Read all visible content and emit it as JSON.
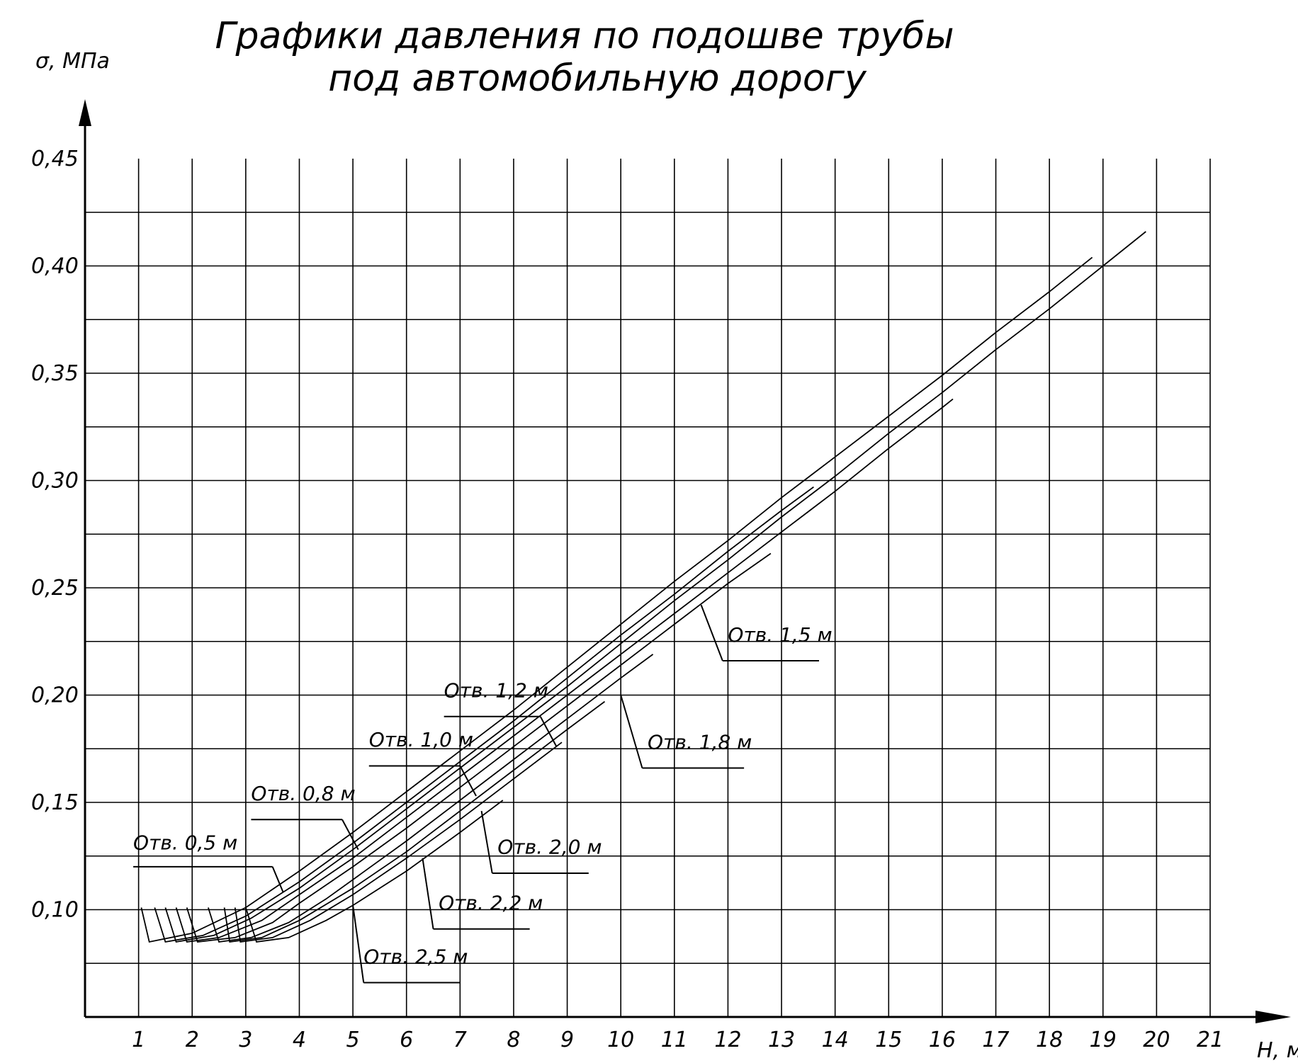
{
  "chart_data": {
    "type": "line",
    "title": [
      "Графики давления по подошве трубы",
      "под автомобильную дорогу"
    ],
    "xlabel": "H, м",
    "ylabel": "σ, МПа",
    "xlim": [
      0,
      21
    ],
    "ylim": [
      0.05,
      0.45
    ],
    "grid": true,
    "x_ticks": [
      "1",
      "2",
      "3",
      "4",
      "5",
      "6",
      "7",
      "8",
      "9",
      "10",
      "11",
      "12",
      "13",
      "14",
      "15",
      "16",
      "17",
      "18",
      "19",
      "20",
      "21"
    ],
    "y_ticks": [
      {
        "value": 0.1,
        "label": "0,10"
      },
      {
        "value": 0.15,
        "label": "0,15"
      },
      {
        "value": 0.2,
        "label": "0,20"
      },
      {
        "value": 0.25,
        "label": "0,25"
      },
      {
        "value": 0.3,
        "label": "0,30"
      },
      {
        "value": 0.35,
        "label": "0,35"
      },
      {
        "value": 0.4,
        "label": "0,40"
      },
      {
        "value": 0.45,
        "label": "0,45"
      }
    ],
    "series": [
      {
        "name": "Отв. 0,5 м",
        "points": [
          [
            1.05,
            0.101
          ],
          [
            1.2,
            0.085
          ],
          [
            2.0,
            0.089
          ],
          [
            3.0,
            0.101
          ],
          [
            4.0,
            0.118
          ],
          [
            5.0,
            0.136
          ],
          [
            6.0,
            0.155
          ],
          [
            7.0,
            0.174
          ],
          [
            8.0,
            0.193
          ],
          [
            9.0,
            0.213
          ],
          [
            10.0,
            0.233
          ],
          [
            11.0,
            0.253
          ],
          [
            12.0,
            0.272
          ],
          [
            13.0,
            0.292
          ],
          [
            14.0,
            0.311
          ],
          [
            15.0,
            0.33
          ],
          [
            16.0,
            0.349
          ],
          [
            17.0,
            0.369
          ],
          [
            18.0,
            0.388
          ],
          [
            18.8,
            0.404
          ]
        ]
      },
      {
        "name": "Отв. 0,8 м",
        "points": [
          [
            1.3,
            0.101
          ],
          [
            1.5,
            0.085
          ],
          [
            2.2,
            0.088
          ],
          [
            3.0,
            0.097
          ],
          [
            4.0,
            0.113
          ],
          [
            5.0,
            0.131
          ],
          [
            6.0,
            0.15
          ],
          [
            7.0,
            0.169
          ],
          [
            8.0,
            0.188
          ],
          [
            9.0,
            0.208
          ],
          [
            10.0,
            0.228
          ],
          [
            11.0,
            0.247
          ],
          [
            12.0,
            0.267
          ],
          [
            13.0,
            0.286
          ],
          [
            13.6,
            0.297
          ]
        ]
      },
      {
        "name": "Отв. 1,0 м",
        "points": [
          [
            1.5,
            0.101
          ],
          [
            1.7,
            0.085
          ],
          [
            2.4,
            0.088
          ],
          [
            3.1,
            0.096
          ],
          [
            4.0,
            0.11
          ],
          [
            5.0,
            0.128
          ],
          [
            6.0,
            0.147
          ],
          [
            7.0,
            0.166
          ],
          [
            8.0,
            0.185
          ],
          [
            9.0,
            0.204
          ],
          [
            10.0,
            0.224
          ],
          [
            11.0,
            0.244
          ],
          [
            12.0,
            0.263
          ],
          [
            13.0,
            0.283
          ],
          [
            14.0,
            0.302
          ],
          [
            15.0,
            0.322
          ],
          [
            16.0,
            0.341
          ],
          [
            17.0,
            0.361
          ],
          [
            18.0,
            0.38
          ],
          [
            19.0,
            0.4
          ],
          [
            19.8,
            0.416
          ]
        ]
      },
      {
        "name": "Отв. 1,2 м",
        "points": [
          [
            1.7,
            0.101
          ],
          [
            1.9,
            0.085
          ],
          [
            2.5,
            0.087
          ],
          [
            3.3,
            0.095
          ],
          [
            4.0,
            0.107
          ],
          [
            5.0,
            0.124
          ],
          [
            6.0,
            0.143
          ],
          [
            7.0,
            0.162
          ],
          [
            8.0,
            0.181
          ],
          [
            9.0,
            0.2
          ],
          [
            10.0,
            0.219
          ],
          [
            11.0,
            0.238
          ],
          [
            12.0,
            0.257
          ],
          [
            13.0,
            0.276
          ],
          [
            14.0,
            0.295
          ],
          [
            15.0,
            0.315
          ],
          [
            16.0,
            0.334
          ],
          [
            16.2,
            0.338
          ]
        ]
      },
      {
        "name": "Отв. 1,5 м",
        "points": [
          [
            1.9,
            0.101
          ],
          [
            2.1,
            0.085
          ],
          [
            2.8,
            0.087
          ],
          [
            3.5,
            0.094
          ],
          [
            4.0,
            0.103
          ],
          [
            5.0,
            0.12
          ],
          [
            6.0,
            0.138
          ],
          [
            7.0,
            0.157
          ],
          [
            8.0,
            0.176
          ],
          [
            9.0,
            0.195
          ],
          [
            10.0,
            0.214
          ],
          [
            11.0,
            0.233
          ],
          [
            12.0,
            0.252
          ],
          [
            12.8,
            0.266
          ]
        ]
      },
      {
        "name": "Отв. 1,8 м",
        "points": [
          [
            2.3,
            0.101
          ],
          [
            2.5,
            0.085
          ],
          [
            3.1,
            0.087
          ],
          [
            3.8,
            0.094
          ],
          [
            4.5,
            0.105
          ],
          [
            5.0,
            0.114
          ],
          [
            6.0,
            0.132
          ],
          [
            7.0,
            0.151
          ],
          [
            8.0,
            0.17
          ],
          [
            9.0,
            0.189
          ],
          [
            10.0,
            0.208
          ],
          [
            10.6,
            0.219
          ]
        ]
      },
      {
        "name": "Отв. 2,0 м",
        "points": [
          [
            2.6,
            0.101
          ],
          [
            2.7,
            0.085
          ],
          [
            3.3,
            0.087
          ],
          [
            4.0,
            0.095
          ],
          [
            5.0,
            0.11
          ],
          [
            6.0,
            0.127
          ],
          [
            7.0,
            0.146
          ],
          [
            8.0,
            0.165
          ],
          [
            9.0,
            0.184
          ],
          [
            9.7,
            0.197
          ]
        ]
      },
      {
        "name": "Отв. 2,2 м",
        "points": [
          [
            2.8,
            0.101
          ],
          [
            2.9,
            0.085
          ],
          [
            3.5,
            0.087
          ],
          [
            4.2,
            0.095
          ],
          [
            5.0,
            0.107
          ],
          [
            6.0,
            0.124
          ],
          [
            7.0,
            0.142
          ],
          [
            8.0,
            0.161
          ],
          [
            8.9,
            0.178
          ]
        ]
      },
      {
        "name": "Отв. 2,5 м",
        "points": [
          [
            3.0,
            0.101
          ],
          [
            3.2,
            0.085
          ],
          [
            3.8,
            0.087
          ],
          [
            4.5,
            0.095
          ],
          [
            5.0,
            0.102
          ],
          [
            6.0,
            0.118
          ],
          [
            7.0,
            0.136
          ],
          [
            7.8,
            0.151
          ]
        ]
      }
    ],
    "callouts": [
      {
        "label": "Отв. 0,5 м",
        "text_at": [
          0.9,
          0.128
        ],
        "shelf": [
          0.9,
          3.5,
          0.12
        ],
        "pointer_to": [
          3.7,
          0.108
        ]
      },
      {
        "label": "Отв. 0,8 м",
        "text_at": [
          3.1,
          0.151
        ],
        "shelf": [
          3.1,
          4.8,
          0.142
        ],
        "pointer_to": [
          5.1,
          0.128
        ]
      },
      {
        "label": "Отв. 1,0 м",
        "text_at": [
          5.3,
          0.176
        ],
        "shelf": [
          5.3,
          7.0,
          0.167
        ],
        "pointer_to": [
          7.3,
          0.153
        ]
      },
      {
        "label": "Отв. 1,2 м",
        "text_at": [
          6.7,
          0.199
        ],
        "shelf": [
          6.7,
          8.5,
          0.19
        ],
        "pointer_to": [
          8.8,
          0.176
        ]
      },
      {
        "label": "Отв. 1,5 м",
        "text_at": [
          12.0,
          0.225
        ],
        "shelf": [
          11.9,
          13.7,
          0.216
        ],
        "pointer_to": [
          11.5,
          0.242
        ]
      },
      {
        "label": "Отв. 1,8 м",
        "text_at": [
          10.5,
          0.175
        ],
        "shelf": [
          10.4,
          12.3,
          0.166
        ],
        "pointer_to": [
          10.0,
          0.2
        ]
      },
      {
        "label": "Отв. 2,0 м",
        "text_at": [
          7.7,
          0.126
        ],
        "shelf": [
          7.6,
          9.4,
          0.117
        ],
        "pointer_to": [
          7.4,
          0.146
        ]
      },
      {
        "label": "Отв. 2,2 м",
        "text_at": [
          6.6,
          0.1
        ],
        "shelf": [
          6.5,
          8.3,
          0.091
        ],
        "pointer_to": [
          6.3,
          0.124
        ]
      },
      {
        "label": "Отв. 2,5 м",
        "text_at": [
          5.2,
          0.075
        ],
        "shelf": [
          5.2,
          7.0,
          0.066
        ],
        "pointer_to": [
          5.0,
          0.102
        ]
      }
    ]
  }
}
